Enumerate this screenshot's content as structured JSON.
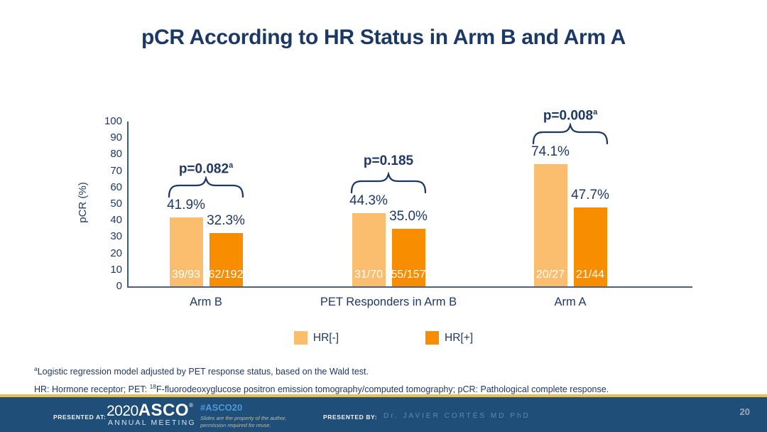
{
  "slide": {
    "title": "pCR According to HR Status in Arm B and Arm A"
  },
  "chart_data": {
    "type": "bar",
    "ylabel": "pCR (%)",
    "ylim": [
      0,
      100
    ],
    "yticks": [
      0,
      10,
      20,
      30,
      40,
      50,
      60,
      70,
      80,
      90,
      100
    ],
    "grid": "off",
    "legend_position": "bottom",
    "categories": [
      "Arm B",
      "PET Responders in Arm B",
      "Arm A"
    ],
    "series_colors": {
      "light_orange": "#FBBE6E",
      "dark_orange": "#F98D00"
    },
    "legend": [
      {
        "label": "HR[-]",
        "color": "#FBBE6E"
      },
      {
        "label": "HR[+]",
        "color": "#F98D00"
      }
    ],
    "groups": [
      {
        "label": "Arm B",
        "p_value": "p=0.082",
        "p_sup": "a",
        "bars": [
          {
            "series": "HR[-]",
            "value": 41.9,
            "value_label": "41.9%",
            "fraction": "39/93"
          },
          {
            "series": "HR[+]",
            "value": 32.3,
            "value_label": "32.3%",
            "fraction": "62/192"
          }
        ]
      },
      {
        "label": "PET Responders in Arm B",
        "p_value": "p=0.185",
        "p_sup": "",
        "bars": [
          {
            "series": "HR[-]",
            "value": 44.3,
            "value_label": "44.3%",
            "fraction": "31/70"
          },
          {
            "series": "HR[+]",
            "value": 35.0,
            "value_label": "35.0%",
            "fraction": "55/157"
          }
        ]
      },
      {
        "label": "Arm A",
        "p_value": "p=0.008",
        "p_sup": "a",
        "bars": [
          {
            "series": "HR[-]",
            "value": 74.1,
            "value_label": "74.1%",
            "fraction": "20/27"
          },
          {
            "series": "HR[+]",
            "value": 47.7,
            "value_label": "47.7%",
            "fraction": "21/44"
          }
        ]
      }
    ]
  },
  "footnotes": {
    "line1_sup": "a",
    "line1": "Logistic regression model adjusted by PET response status, based on the Wald test.",
    "line2_pre": "HR: Hormone receptor; PET: ",
    "line2_sup": "18",
    "line2_post": "F-fluorodeoxyglucose positron emission tomography/computed tomography; pCR: Pathological complete response."
  },
  "footer": {
    "presented_at_label": "PRESENTED AT:",
    "logo_year": "2020",
    "logo_name": "ASCO",
    "logo_reg": "®",
    "logo_subtitle": "ANNUAL MEETING",
    "hashtag": "#ASCO20",
    "reuse_line1": "Slides are the property of the author,",
    "reuse_line2": "permission required for reuse.",
    "presented_by_label": "PRESENTED BY:",
    "presenter": "Dr. JAVIER CORTÉS MD PhD",
    "page_number": "20",
    "colors": {
      "bar_background": "#1F4E79",
      "gold_accent": "#E9BE4B",
      "hashtag_blue": "#4D9AD8",
      "title_navy": "#1C3966"
    }
  }
}
